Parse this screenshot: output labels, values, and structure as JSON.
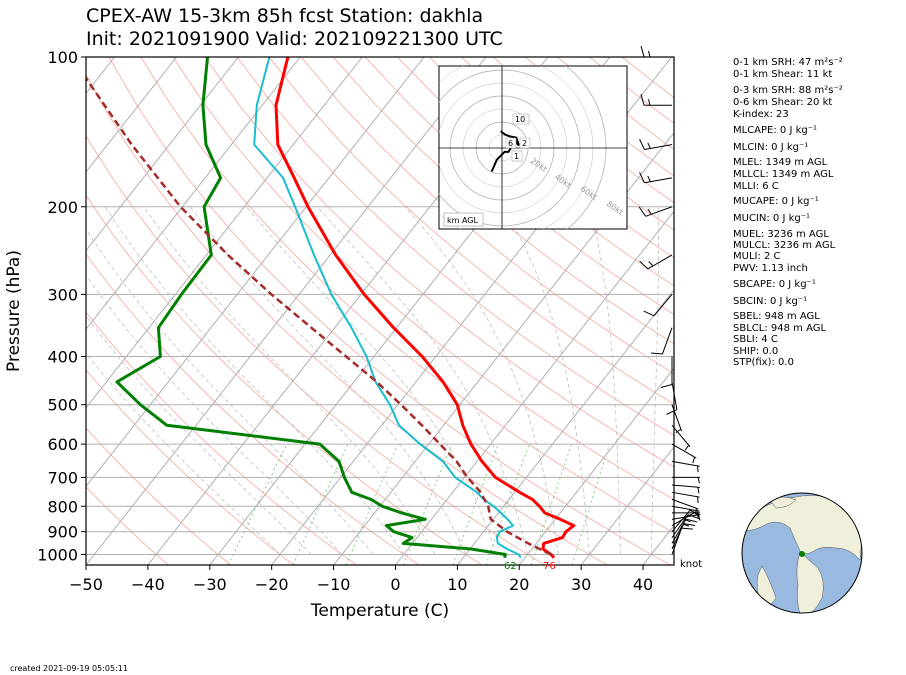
{
  "title_line1": "CPEX-AW 15-3km  85h fcst  Station: dakhla",
  "title_line2": "Init: 2021091900  Valid: 202109221300 UTC",
  "created": "created 2021-09-19 05:05:11",
  "knot_label": "knot",
  "hodograph_label": "km AGL",
  "hodograph_ring_labels": [
    "20kt",
    "40kt",
    "60kt",
    "80kt"
  ],
  "hodograph_height_labels": [
    "10",
    "6",
    "2",
    "1"
  ],
  "sfc_dewpoint_label": "62",
  "sfc_temp_label": "76",
  "indices": [
    "0-1 km SRH: 47 m²s⁻²",
    "0-1 km Shear: 11 kt",
    "0-3 km SRH: 88 m²s⁻²",
    "0-6 km Shear: 20 kt",
    "K-index: 23",
    "MLCAPE: 0 J kg⁻¹",
    "MLCIN: 0 J kg⁻¹",
    "MLEL: 1349 m AGL",
    "MLLCL: 1349 m AGL",
    "MLLI: 6 C",
    "MUCAPE: 0 J kg⁻¹",
    "MUCIN: 0 J kg⁻¹",
    "MUEL: 3236 m AGL",
    "MULCL: 3236 m AGL",
    "MULI: 2 C",
    "PWV: 1.13 inch",
    "SBCAPE: 0 J kg⁻¹",
    "SBCIN: 0 J kg⁻¹",
    "SBEL: 948 m AGL",
    "SBLCL: 948 m AGL",
    "SBLI: 4 C",
    "SHIP: 0.0",
    "STP(fix): 0.0"
  ],
  "colors": {
    "temperature": "#ff0000",
    "dewpoint": "#008000",
    "wetbulb": "#17becf",
    "parcel": "#a52a2a",
    "isobar": "#b0b0b0",
    "isotherm": "#b0b0b0",
    "dry_adiabat": "#f4b8b0",
    "moist_adiabat": "#c0c0c0",
    "mixing_ratio": "#7fc97f",
    "globe_ocean": "#99b9e0",
    "globe_land": "#efefdb",
    "station_marker": "#008000"
  },
  "chart_data": {
    "type": "skew-t",
    "xlabel": "Temperature (C)",
    "ylabel": "Pressure (hPa)",
    "x_ticks": [
      -50,
      -40,
      -30,
      -20,
      -10,
      0,
      10,
      20,
      30,
      40
    ],
    "y_ticks": [
      100,
      200,
      300,
      400,
      500,
      600,
      700,
      800,
      900,
      1000
    ],
    "xlim": [
      -50,
      45
    ],
    "ylim": [
      1050,
      100
    ],
    "y_scale": "log",
    "grid": true,
    "series": [
      {
        "name": "temperature",
        "p": [
          1015,
          1000,
          975,
          950,
          925,
          900,
          875,
          850,
          825,
          800,
          775,
          750,
          700,
          650,
          600,
          550,
          500,
          450,
          400,
          350,
          300,
          250,
          200,
          175,
          150,
          125,
          100
        ],
        "t": [
          24.7,
          23.8,
          21.8,
          21.2,
          23.5,
          23.3,
          23.8,
          20.8,
          17.5,
          15.8,
          13.8,
          10.8,
          5.0,
          0.8,
          -3.2,
          -6.9,
          -10.4,
          -15.6,
          -22.2,
          -30.5,
          -39.5,
          -49.1,
          -59.7,
          -65.6,
          -72.5,
          -77.8,
          -82.0
        ]
      },
      {
        "name": "dewpoint",
        "p": [
          1015,
          1000,
          975,
          950,
          925,
          900,
          875,
          850,
          825,
          800,
          775,
          750,
          700,
          650,
          600,
          550,
          500,
          450,
          400,
          350,
          300,
          250,
          200,
          175,
          150,
          125,
          100
        ],
        "t": [
          16.7,
          16.4,
          10.2,
          -1.5,
          -0.8,
          -4.5,
          -6.5,
          -1.0,
          -5.6,
          -9.6,
          -12.3,
          -16.3,
          -19.4,
          -22.3,
          -27.6,
          -54.7,
          -61.6,
          -68.3,
          -64.5,
          -68.5,
          -69.0,
          -69.2,
          -76.5,
          -77.5,
          -84.1,
          -89.6,
          -95.0
        ]
      },
      {
        "name": "wetbulb",
        "p": [
          1015,
          1000,
          975,
          950,
          925,
          900,
          875,
          850,
          825,
          800,
          775,
          750,
          700,
          650,
          600,
          550,
          500,
          450,
          400,
          350,
          300,
          250,
          200,
          175,
          150,
          125,
          100
        ],
        "t": [
          19.3,
          18.6,
          16.0,
          13.8,
          12.9,
          12.6,
          14.0,
          12.3,
          10.4,
          8.4,
          5.9,
          3.9,
          -1.5,
          -5.5,
          -11.4,
          -17.2,
          -21.3,
          -26.5,
          -31.2,
          -37.3,
          -44.8,
          -52.6,
          -61.8,
          -67.4,
          -76.3,
          -80.9,
          -85.0
        ]
      },
      {
        "name": "parcel",
        "p": [
          1000,
          950,
          900,
          850,
          800,
          750,
          700,
          650,
          600,
          550,
          500,
          450,
          400,
          350,
          300,
          250,
          200,
          150,
          100
        ],
        "t": [
          23.8,
          18.7,
          13.8,
          9.6,
          7.5,
          4.5,
          0.5,
          -3.3,
          -8.2,
          -13.5,
          -19.5,
          -26.3,
          -34.5,
          -43.8,
          -54.5,
          -66.5,
          -80.3,
          -96.1,
          -117.0
        ]
      }
    ],
    "wind_barbs": {
      "p": [
        1000,
        975,
        950,
        925,
        900,
        875,
        850,
        825,
        800,
        775,
        750,
        725,
        700,
        650,
        600,
        550,
        500,
        450,
        400,
        350,
        300,
        250,
        200,
        175,
        150,
        125,
        100
      ],
      "speed_kt": [
        10,
        10,
        15,
        15,
        12,
        8,
        8,
        6,
        7,
        6,
        6,
        5,
        5,
        6,
        6,
        8,
        8,
        10,
        10,
        10,
        12,
        15,
        15,
        15,
        15,
        15,
        15
      ],
      "dir_deg": [
        20,
        25,
        30,
        35,
        40,
        60,
        80,
        90,
        100,
        110,
        100,
        95,
        90,
        100,
        120,
        140,
        160,
        170,
        180,
        200,
        220,
        240,
        250,
        260,
        260,
        270,
        270
      ]
    },
    "hodograph": {
      "u_kt": [
        -8,
        -7,
        -4,
        -2,
        2,
        5,
        8,
        10,
        13,
        11,
        6,
        3,
        0,
        -1
      ],
      "v_kt": [
        -18,
        -16,
        -9,
        -7,
        -3,
        -3,
        2,
        5,
        2,
        8,
        9,
        10,
        12,
        13
      ]
    }
  }
}
